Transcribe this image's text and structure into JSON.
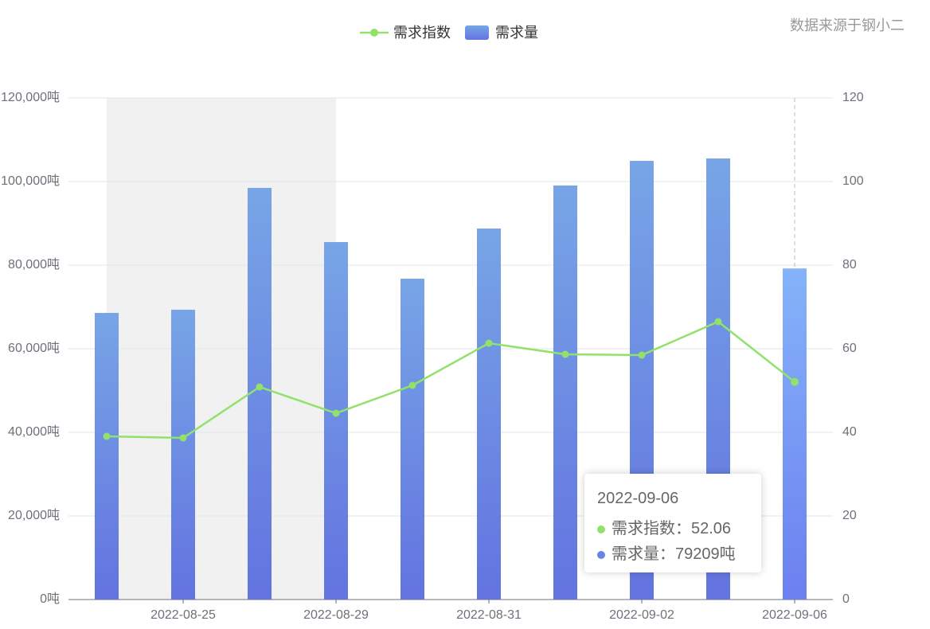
{
  "chart_data": {
    "type": "bar-line",
    "source": "数据来源于钢小二",
    "categories": [
      null,
      "2022-08-25",
      null,
      "2022-08-29",
      null,
      "2022-08-31",
      null,
      "2022-09-02",
      null,
      "2022-09-06"
    ],
    "series": [
      {
        "name": "需求指数",
        "type": "line",
        "axis": "y2",
        "color": "#91e26b",
        "values": [
          39.05,
          38.67,
          50.86,
          44.57,
          51.24,
          61.33,
          58.67,
          58.48,
          66.48,
          52.06
        ]
      },
      {
        "name": "需求量",
        "type": "bar",
        "color": "#6a84e6",
        "values": [
          68570,
          69330,
          98480,
          85520,
          76760,
          88760,
          99050,
          104950,
          105520,
          79209
        ]
      }
    ],
    "ylim": [
      0,
      120000
    ],
    "yticks": [
      {
        "value": 0,
        "label": "0吨"
      },
      {
        "value": 20000,
        "label": "20,000吨"
      },
      {
        "value": 40000,
        "label": "40,000吨"
      },
      {
        "value": 60000,
        "label": "60,000吨"
      },
      {
        "value": 80000,
        "label": "80,000吨"
      },
      {
        "value": 100000,
        "label": "100,000吨"
      },
      {
        "value": 120000,
        "label": "120,000吨"
      }
    ],
    "y2lim": [
      0,
      120
    ],
    "y2ticks": [
      0,
      20,
      40,
      60,
      80,
      100,
      120
    ],
    "grid": true,
    "legend": "top",
    "tooltip": {
      "title": "2022-09-06",
      "items": [
        "需求指数：52.06",
        "需求量：79209吨"
      ]
    }
  }
}
